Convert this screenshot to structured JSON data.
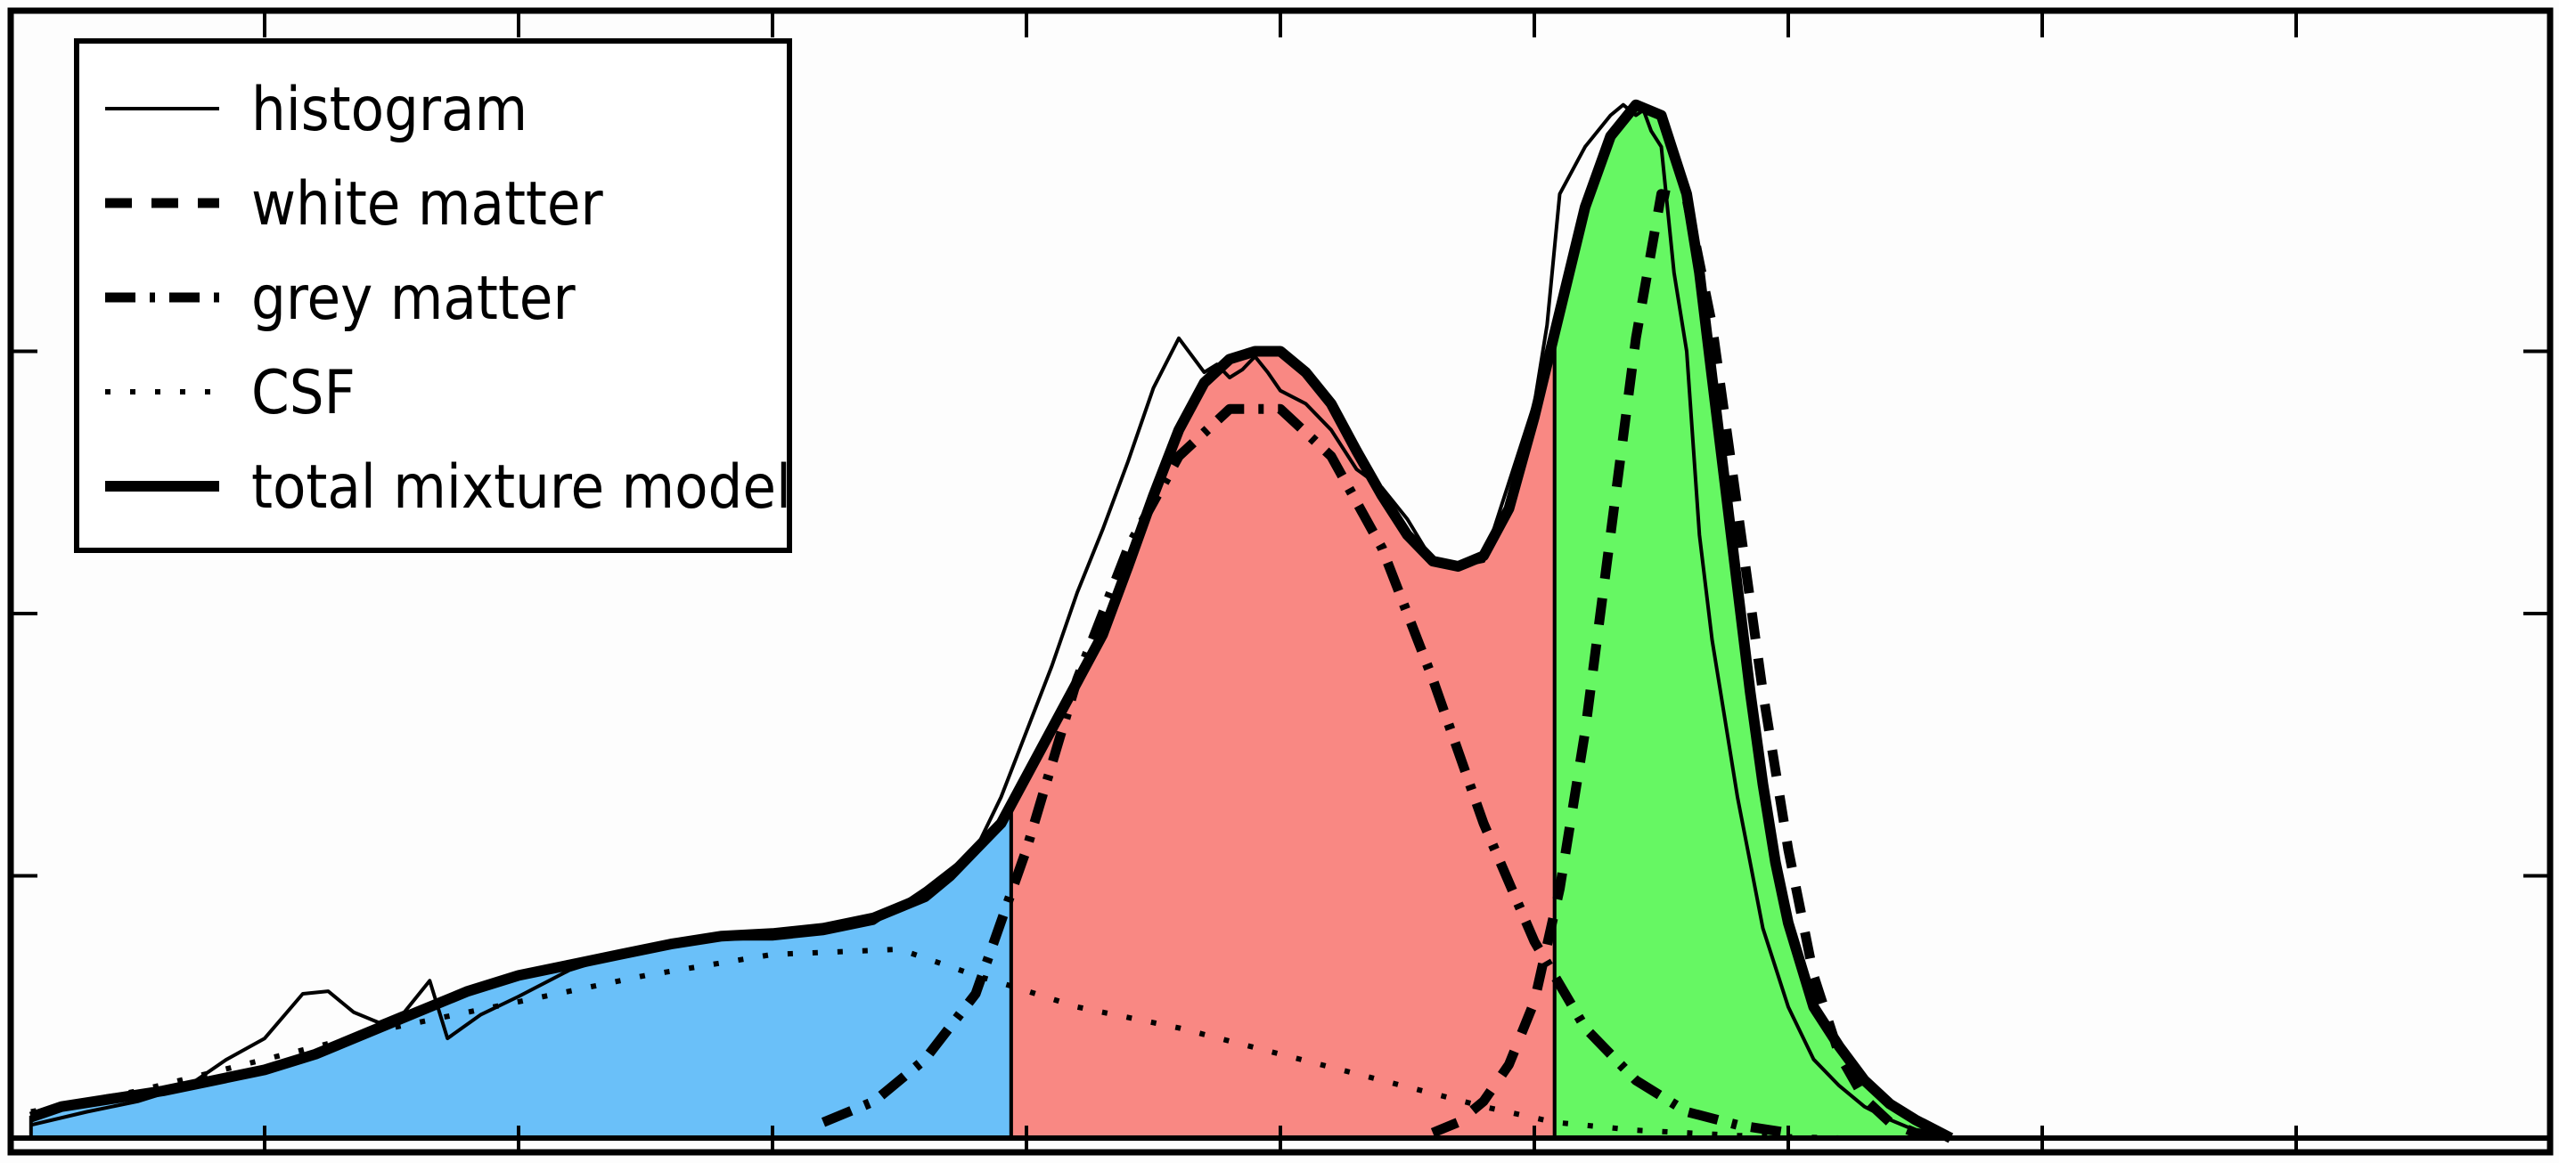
{
  "chart_data": {
    "type": "area",
    "title": "",
    "xlabel": "",
    "ylabel": "",
    "xlim": [
      0,
      100
    ],
    "ylim": [
      0,
      4
    ],
    "x_ticks": [
      0,
      10,
      20,
      30,
      40,
      50,
      60,
      70,
      80,
      90,
      100
    ],
    "y_ticks": [
      0,
      1,
      2,
      3,
      4
    ],
    "tick_labels_shown": false,
    "grid": false,
    "legend_position": "top-left",
    "legend": [
      {
        "label": "histogram",
        "style": "solid-thin"
      },
      {
        "label": "white matter",
        "style": "dashed"
      },
      {
        "label": "grey matter",
        "style": "dash-dot"
      },
      {
        "label": "CSF",
        "style": "dotted"
      },
      {
        "label": "total mixture model",
        "style": "solid-thick"
      }
    ],
    "regions": [
      {
        "class": "CSF",
        "x_range": [
          0.8,
          39.4
        ],
        "color": "#6ac0f9"
      },
      {
        "class": "grey matter",
        "x_range": [
          39.4,
          60.8
        ],
        "color": "#f98883"
      },
      {
        "class": "white matter",
        "x_range": [
          60.8,
          76.4
        ],
        "color": "#66f763"
      }
    ],
    "series": [
      {
        "name": "histogram",
        "color": "#000000",
        "x": [
          0.8,
          3,
          5,
          7,
          8.5,
          10,
          11.5,
          12.5,
          13.5,
          14.5,
          15.5,
          16.5,
          17.2,
          18.5,
          20,
          22,
          24,
          26,
          28,
          30,
          32,
          34,
          36,
          38,
          39,
          40,
          41,
          42,
          43,
          44,
          45,
          46,
          47,
          47.5,
          48,
          48.5,
          49,
          49.5,
          50,
          51,
          52,
          53,
          54,
          55,
          56,
          57,
          58,
          59,
          60,
          60.5,
          61,
          62,
          63,
          63.5,
          64,
          64.3,
          64.6,
          65,
          65.5,
          66,
          66.5,
          67,
          67.5,
          68,
          68.5,
          69,
          70,
          71,
          72,
          73,
          74,
          75,
          76.4
        ],
        "y": [
          0.05,
          0.1,
          0.14,
          0.2,
          0.3,
          0.38,
          0.55,
          0.56,
          0.48,
          0.44,
          0.48,
          0.6,
          0.38,
          0.47,
          0.54,
          0.64,
          0.7,
          0.74,
          0.76,
          0.76,
          0.78,
          0.82,
          0.95,
          1.1,
          1.3,
          1.55,
          1.8,
          2.08,
          2.32,
          2.58,
          2.86,
          3.05,
          2.92,
          2.95,
          2.9,
          2.93,
          2.98,
          2.92,
          2.85,
          2.8,
          2.7,
          2.55,
          2.48,
          2.36,
          2.2,
          2.18,
          2.2,
          2.5,
          2.8,
          3.1,
          3.6,
          3.78,
          3.9,
          3.94,
          3.9,
          3.92,
          3.84,
          3.78,
          3.3,
          3.0,
          2.3,
          1.9,
          1.6,
          1.3,
          1.05,
          0.8,
          0.5,
          0.3,
          0.2,
          0.12,
          0.07,
          0.03,
          0.0
        ]
      },
      {
        "name": "white matter",
        "color": "#000000",
        "x": [
          56,
          57,
          58,
          59,
          60,
          61,
          62,
          63,
          64,
          65,
          66,
          67,
          68,
          69,
          70,
          71,
          72,
          73,
          74,
          75,
          76.4
        ],
        "y": [
          0.02,
          0.06,
          0.14,
          0.28,
          0.52,
          0.95,
          1.55,
          2.3,
          3.05,
          3.6,
          3.58,
          3.1,
          2.4,
          1.7,
          1.1,
          0.62,
          0.32,
          0.15,
          0.06,
          0.02,
          0.0
        ]
      },
      {
        "name": "grey matter",
        "color": "#000000",
        "x": [
          32,
          34,
          36,
          38,
          40,
          42,
          44,
          46,
          48,
          50,
          52,
          54,
          56,
          58,
          60,
          62,
          64,
          66,
          68,
          70
        ],
        "y": [
          0.06,
          0.14,
          0.3,
          0.55,
          1.1,
          1.75,
          2.25,
          2.6,
          2.78,
          2.78,
          2.6,
          2.25,
          1.75,
          1.2,
          0.75,
          0.42,
          0.22,
          0.1,
          0.05,
          0.02
        ]
      },
      {
        "name": "CSF",
        "color": "#000000",
        "x": [
          0.8,
          5,
          10,
          15,
          20,
          25,
          30,
          35,
          38,
          39.4,
          42,
          46,
          50,
          54,
          58,
          60.8,
          64,
          68,
          72,
          75
        ],
        "y": [
          0.1,
          0.18,
          0.3,
          0.42,
          0.52,
          0.62,
          0.7,
          0.72,
          0.62,
          0.58,
          0.5,
          0.42,
          0.32,
          0.22,
          0.12,
          0.06,
          0.03,
          0.01,
          0.0,
          0.0
        ]
      },
      {
        "name": "total mixture model",
        "color": "#000000",
        "x": [
          0.8,
          2,
          4,
          6,
          8,
          10,
          12,
          14,
          16,
          18,
          20,
          22,
          24,
          26,
          28,
          30,
          32,
          34,
          36,
          37,
          38,
          39,
          40,
          41,
          42,
          43,
          44,
          45,
          46,
          47,
          48,
          49,
          50,
          51,
          52,
          53,
          54,
          55,
          56,
          57,
          58,
          59,
          60,
          61,
          62,
          63,
          64,
          65,
          66,
          66.5,
          67,
          67.5,
          68,
          68.5,
          69,
          69.5,
          70,
          71,
          72,
          73,
          74,
          75,
          76.4
        ],
        "y": [
          0.08,
          0.12,
          0.15,
          0.18,
          0.22,
          0.26,
          0.32,
          0.4,
          0.48,
          0.56,
          0.62,
          0.66,
          0.7,
          0.74,
          0.77,
          0.78,
          0.8,
          0.84,
          0.92,
          1.0,
          1.1,
          1.2,
          1.38,
          1.56,
          1.74,
          1.92,
          2.18,
          2.45,
          2.7,
          2.88,
          2.97,
          3.0,
          3.0,
          2.92,
          2.8,
          2.62,
          2.45,
          2.3,
          2.2,
          2.18,
          2.22,
          2.4,
          2.75,
          3.15,
          3.55,
          3.82,
          3.94,
          3.9,
          3.6,
          3.3,
          2.9,
          2.5,
          2.1,
          1.7,
          1.35,
          1.05,
          0.82,
          0.5,
          0.35,
          0.22,
          0.13,
          0.07,
          0.0
        ]
      }
    ]
  }
}
